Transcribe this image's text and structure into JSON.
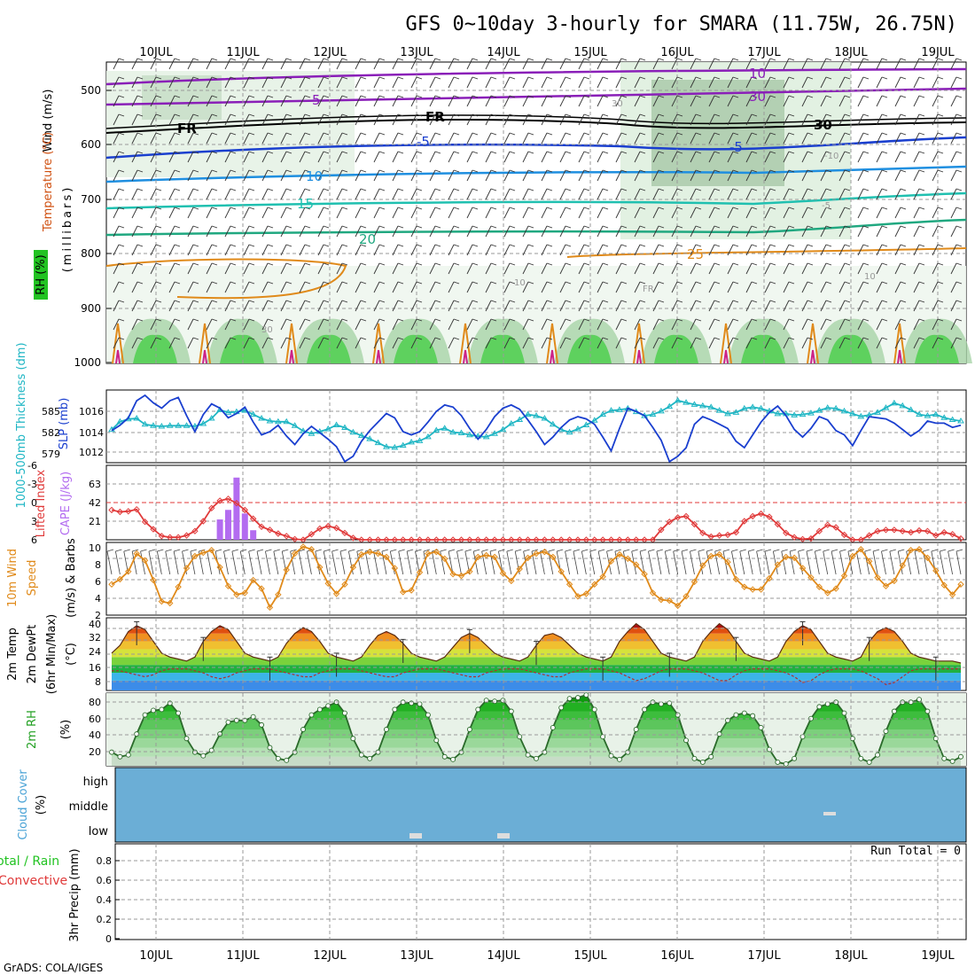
{
  "title": "GFS 0~10day 3-hourly for SMARA (11.75W, 26.75N)",
  "credit": "GrADS: COLA/IGES",
  "dates": [
    "10JUL",
    "11JUL",
    "12JUL",
    "13JUL",
    "14JUL",
    "15JUL",
    "16JUL",
    "17JUL",
    "18JUL",
    "19JUL"
  ],
  "colors": {
    "frame": "#000000",
    "grid": "#9a9a9a",
    "slp": "#1a3fcf",
    "thickness": "#1fb6c4",
    "lifted": "#e03a3a",
    "cape": "#b36cf0",
    "wind10": "#e08a1a",
    "cloud": "#6baed6",
    "rh_green": "#22c322",
    "purple": "#8a1fb8"
  },
  "panels": {
    "upper": {
      "ylabel_wind": "Wind (m/s)",
      "ylabel_temp": "Temperature (°C)",
      "ylabel_mb": "(millibars)",
      "ylabel_rh": "RH (%)",
      "yticks": [
        "500",
        "600",
        "700",
        "800",
        "900",
        "1000"
      ],
      "contour_labels": [
        "10",
        "5",
        "FR",
        "FR",
        "-5",
        "-5",
        "10",
        "15",
        "20",
        "25",
        "30",
        "30",
        "10",
        "10",
        "-10",
        "-5",
        "FR",
        "30",
        "30"
      ]
    },
    "slp": {
      "ylabel_thick": "1000-500mb Thickness (dm)",
      "ylabel_slp": "SLP (mb)",
      "ticks_slp": [
        "1016",
        "1014",
        "1012"
      ],
      "ticks_thick": [
        "585",
        "582",
        "579"
      ]
    },
    "li": {
      "ylabel_li": "Lifted Index",
      "ylabel_cape": "CAPE (J/kg)",
      "ticks_li": [
        "-6",
        "-3",
        "0",
        "3",
        "6"
      ],
      "ticks_cape": [
        "63",
        "42",
        "21"
      ]
    },
    "wind10": {
      "ylabel_a": "10m Wind",
      "ylabel_b": "Speed",
      "ylabel_c": "(m/s) & Barbs",
      "ticks": [
        "10",
        "8",
        "6",
        "4",
        "2"
      ]
    },
    "temp2m": {
      "ylabel_a": "2m Temp",
      "ylabel_b": "2m DewPt",
      "ylabel_c": "(6hr Min/Max)",
      "ylabel_d": "(°C)",
      "ticks": [
        "40",
        "32",
        "24",
        "16",
        "8"
      ]
    },
    "rh2m": {
      "ylabel_a": "2m RH",
      "ylabel_b": "(%)",
      "ticks": [
        "80",
        "60",
        "40",
        "20"
      ]
    },
    "cloud": {
      "ylabel_a": "Cloud Cover",
      "ylabel_b": "(%)",
      "levels": [
        "high",
        "middle",
        "low"
      ]
    },
    "precip": {
      "ylabel_a": "Total / Rain",
      "ylabel_b": "Convective",
      "ylabel_c": "3hr Precip (mm)",
      "ticks": [
        "0.8",
        "0.6",
        "0.4",
        "0.2",
        "0"
      ],
      "run_total": "Run Total = 0"
    }
  },
  "chart_data": [
    {
      "type": "line",
      "title": "SLP / 1000-500mb Thickness",
      "step_hours": 3,
      "series": [
        {
          "name": "SLP (mb)",
          "values": [
            1014.0,
            1014.5,
            1015.2,
            1016.8,
            1017.3,
            1016.6,
            1016.1,
            1016.8,
            1017.1,
            1015.4,
            1013.9,
            1015.5,
            1016.5,
            1016.1,
            1015.2,
            1015.6,
            1016.2,
            1014.8,
            1013.6,
            1013.9,
            1014.5,
            1013.5,
            1012.7,
            1013.7,
            1014.4,
            1013.8,
            1013.2,
            1012.5,
            1011.1,
            1011.6,
            1013.0,
            1014.0,
            1014.8,
            1015.6,
            1015.2,
            1013.9,
            1013.6,
            1013.9,
            1014.8,
            1015.8,
            1016.4,
            1016.2,
            1015.4,
            1014.2,
            1013.2,
            1014.1,
            1015.3,
            1016.1,
            1016.4,
            1016.0,
            1015.0,
            1013.9,
            1012.7,
            1013.4,
            1014.3,
            1015.0,
            1015.3,
            1015.1,
            1014.6,
            1013.4,
            1012.1,
            1014.2,
            1016.1,
            1015.8,
            1015.4,
            1014.3,
            1013.1,
            1011.1,
            1011.6,
            1012.4,
            1014.6,
            1015.3,
            1015.0,
            1014.6,
            1014.2,
            1013.0,
            1012.4,
            1013.6,
            1014.8,
            1015.7,
            1016.3,
            1015.4,
            1014.1,
            1013.4,
            1014.2,
            1015.3,
            1015.0,
            1014.0,
            1013.6,
            1012.6,
            1014.0,
            1015.3,
            1015.2,
            1015.1,
            1014.7,
            1014.1,
            1013.5,
            1014.0,
            1014.9,
            1014.7,
            1014.7,
            1014.3,
            1014.5
          ]
        },
        {
          "name": "Thickness (dm)",
          "values": [
            582.0,
            583.2,
            583.6,
            583.7,
            582.8,
            582.6,
            582.5,
            582.6,
            582.6,
            582.6,
            582.5,
            582.9,
            583.7,
            585.0,
            584.6,
            584.7,
            584.9,
            584.3,
            583.7,
            583.3,
            583.2,
            583.2,
            582.6,
            581.8,
            581.4,
            581.7,
            582.1,
            582.7,
            582.3,
            581.6,
            581.1,
            580.6,
            580.0,
            579.4,
            579.3,
            579.6,
            580.1,
            580.3,
            580.9,
            581.9,
            582.2,
            581.6,
            581.5,
            581.2,
            581.0,
            580.9,
            581.4,
            582.0,
            582.9,
            583.5,
            584.3,
            584.1,
            583.7,
            582.8,
            582.0,
            581.6,
            582.1,
            582.7,
            583.4,
            584.3,
            584.9,
            585.0,
            585.2,
            584.7,
            584.1,
            584.3,
            584.8,
            585.5,
            586.4,
            586.1,
            585.8,
            585.6,
            585.4,
            584.9,
            584.4,
            584.6,
            585.2,
            585.4,
            585.2,
            584.8,
            584.4,
            584.4,
            584.2,
            584.3,
            584.5,
            584.9,
            585.3,
            585.2,
            584.8,
            584.4,
            584.0,
            584.2,
            584.6,
            585.3,
            586.0,
            585.6,
            585.0,
            584.3,
            584.1,
            584.3,
            583.8,
            583.5,
            583.3
          ]
        }
      ],
      "ylim_slp": [
        1011,
        1017.8
      ],
      "ylim_thick": [
        577,
        588
      ]
    },
    {
      "type": "line",
      "title": "Lifted Index / CAPE",
      "step_hours": 3,
      "series": [
        {
          "name": "Lifted Index",
          "values": [
            1.2,
            1.5,
            1.4,
            1.1,
            3.1,
            4.3,
            5.4,
            5.6,
            5.6,
            5.3,
            4.6,
            3.0,
            0.9,
            -0.3,
            -0.6,
            0.1,
            1.2,
            2.6,
            3.9,
            4.4,
            5.0,
            5.4,
            5.9,
            6.3,
            5.1,
            4.2,
            3.8,
            4.1,
            4.9,
            5.7,
            6.4,
            7.0,
            7.0,
            7.0,
            7.0,
            7.0,
            7.0,
            7.0,
            7.0,
            7.0,
            7.0,
            7.0,
            7.0,
            7.0,
            7.0,
            7.0,
            7.0,
            7.0,
            7.0,
            7.0,
            7.0,
            7.0,
            7.0,
            7.0,
            7.0,
            7.0,
            7.0,
            7.0,
            7.0,
            7.0,
            7.0,
            7.0,
            7.0,
            7.0,
            7.0,
            6.8,
            4.4,
            3.1,
            2.4,
            2.2,
            3.5,
            4.9,
            5.5,
            5.3,
            5.2,
            4.8,
            3.0,
            2.2,
            1.8,
            2.3,
            3.5,
            4.9,
            5.6,
            5.9,
            5.8,
            4.6,
            3.6,
            4.0,
            5.2,
            6.0,
            6.4,
            5.3,
            4.6,
            4.4,
            4.4,
            4.6,
            4.8,
            4.5,
            4.6,
            5.3,
            4.8,
            5.1,
            5.8
          ]
        },
        {
          "name": "CAPE (J/kg)",
          "values": [
            0,
            0,
            0,
            0,
            0,
            0,
            0,
            0,
            0,
            0,
            0,
            0,
            0,
            17,
            25,
            52,
            22,
            8,
            0,
            0,
            0,
            0,
            0,
            0,
            0,
            0,
            0,
            0,
            0,
            0,
            0,
            0,
            0,
            0,
            0,
            0,
            0,
            0,
            0,
            0,
            0,
            0,
            0,
            0,
            0,
            0,
            0,
            0,
            0,
            0,
            0,
            0,
            0,
            0,
            0,
            0,
            0,
            0,
            0,
            0,
            0,
            0,
            0,
            0,
            0,
            0,
            0,
            0,
            0,
            0,
            0,
            0,
            0,
            0,
            0,
            0,
            0,
            0,
            0,
            0,
            0,
            0,
            0,
            0,
            0,
            0,
            0,
            0,
            0,
            0,
            0,
            0,
            0,
            0,
            0,
            0,
            0,
            0,
            0,
            0,
            0,
            0,
            0
          ]
        }
      ],
      "ylim_li": [
        6,
        -6
      ]
    },
    {
      "type": "line",
      "title": "10m Wind Speed",
      "step_hours": 3,
      "series": [
        {
          "name": "10m Wind Speed (m/s)",
          "values": [
            5.6,
            6.2,
            7.1,
            9.2,
            8.4,
            6.1,
            3.6,
            3.4,
            5.3,
            7.5,
            8.9,
            9.3,
            9.6,
            7.6,
            5.4,
            4.4,
            4.6,
            6.1,
            5.1,
            2.9,
            4.4,
            7.3,
            9.2,
            10.0,
            9.7,
            7.6,
            5.7,
            4.5,
            5.6,
            7.6,
            9.1,
            9.4,
            9.2,
            8.8,
            7.5,
            4.7,
            4.9,
            7.0,
            9.2,
            9.4,
            8.6,
            6.8,
            6.6,
            7.1,
            8.8,
            9.0,
            8.8,
            6.9,
            6.0,
            7.4,
            8.7,
            9.2,
            9.4,
            8.8,
            7.1,
            5.6,
            4.2,
            4.5,
            5.6,
            6.5,
            8.3,
            9.1,
            8.6,
            7.9,
            6.8,
            4.6,
            3.8,
            3.7,
            3.1,
            4.2,
            5.9,
            7.8,
            8.9,
            9.1,
            8.2,
            6.2,
            5.3,
            5.0,
            5.0,
            6.3,
            7.9,
            8.8,
            8.7,
            7.5,
            6.4,
            5.3,
            4.6,
            5.1,
            6.6,
            8.9,
            9.7,
            8.3,
            6.4,
            5.4,
            6.0,
            7.8,
            9.6,
            9.7,
            8.7,
            7.2,
            5.5,
            4.4,
            5.6
          ]
        }
      ],
      "ylim": [
        2,
        10.5
      ]
    },
    {
      "type": "area",
      "title": "2m Temp / DewPt",
      "step_hours": 3,
      "series": [
        {
          "name": "2m Temp (°C)",
          "values": [
            24,
            28,
            35,
            38,
            36,
            30,
            24,
            22,
            21,
            20,
            22,
            30,
            35,
            38,
            36,
            30,
            24,
            22,
            21,
            20,
            22,
            29,
            34,
            37,
            35,
            30,
            24,
            22,
            21,
            20,
            22,
            28,
            33,
            35,
            33,
            29,
            24,
            22,
            21,
            20,
            22,
            27,
            32,
            34,
            32,
            28,
            24,
            22,
            21,
            20,
            22,
            28,
            33,
            34,
            32,
            28,
            24,
            22,
            21,
            20,
            22,
            30,
            35,
            39,
            36,
            30,
            24,
            22,
            21,
            20,
            22,
            30,
            35,
            39,
            36,
            30,
            24,
            22,
            21,
            20,
            22,
            30,
            35,
            38,
            36,
            30,
            24,
            22,
            21,
            20,
            22,
            30,
            35,
            37,
            35,
            30,
            24,
            22,
            21,
            20,
            20,
            20,
            19
          ]
        },
        {
          "name": "2m DewPt (°C)",
          "values": [
            15,
            15,
            14,
            13,
            12,
            13,
            15,
            16,
            16,
            16,
            15,
            14,
            12,
            11,
            12,
            14,
            15,
            16,
            16,
            16,
            15,
            14,
            13,
            12,
            12,
            14,
            15,
            16,
            16,
            16,
            15,
            14,
            13,
            12,
            12,
            14,
            15,
            16,
            16,
            16,
            15,
            14,
            13,
            12,
            12,
            14,
            15,
            16,
            16,
            16,
            15,
            14,
            13,
            12,
            12,
            14,
            15,
            16,
            16,
            16,
            15,
            14,
            12,
            10,
            11,
            13,
            15,
            16,
            16,
            16,
            15,
            14,
            12,
            10,
            10,
            13,
            15,
            16,
            16,
            16,
            15,
            14,
            12,
            9,
            10,
            13,
            15,
            16,
            16,
            16,
            15,
            13,
            11,
            8,
            9,
            12,
            15,
            16,
            16,
            16,
            16,
            16,
            16
          ]
        }
      ],
      "ylim": [
        5,
        42
      ]
    },
    {
      "type": "area",
      "title": "2m RH",
      "step_hours": 3,
      "series": [
        {
          "name": "2m RH (%)",
          "values": [
            25,
            20,
            22,
            45,
            66,
            71,
            72,
            79,
            68,
            40,
            25,
            21,
            27,
            45,
            58,
            60,
            60,
            64,
            55,
            30,
            18,
            16,
            25,
            50,
            66,
            72,
            76,
            80,
            68,
            40,
            22,
            18,
            25,
            50,
            72,
            80,
            79,
            78,
            66,
            38,
            20,
            17,
            25,
            50,
            72,
            82,
            81,
            82,
            70,
            42,
            22,
            18,
            25,
            52,
            74,
            84,
            85,
            88,
            72,
            42,
            21,
            17,
            25,
            50,
            72,
            80,
            78,
            79,
            66,
            38,
            18,
            14,
            20,
            45,
            60,
            66,
            68,
            65,
            52,
            28,
            14,
            12,
            18,
            42,
            62,
            75,
            78,
            80,
            68,
            40,
            18,
            14,
            22,
            48,
            70,
            80,
            80,
            83,
            70,
            40,
            18,
            15,
            20
          ]
        }
      ],
      "ylim": [
        10,
        90
      ]
    },
    {
      "type": "bar",
      "title": "Cloud Cover",
      "categories": [
        "high",
        "middle",
        "low"
      ],
      "series": [
        {
          "name": "Cloud Cover (%)",
          "values": [
            0,
            0,
            0
          ]
        }
      ]
    },
    {
      "type": "bar",
      "title": "3hr Precip",
      "series": [
        {
          "name": "Total / Rain",
          "values": [
            0
          ]
        },
        {
          "name": "Convective",
          "values": [
            0
          ]
        }
      ],
      "ylim": [
        0,
        1
      ]
    }
  ]
}
